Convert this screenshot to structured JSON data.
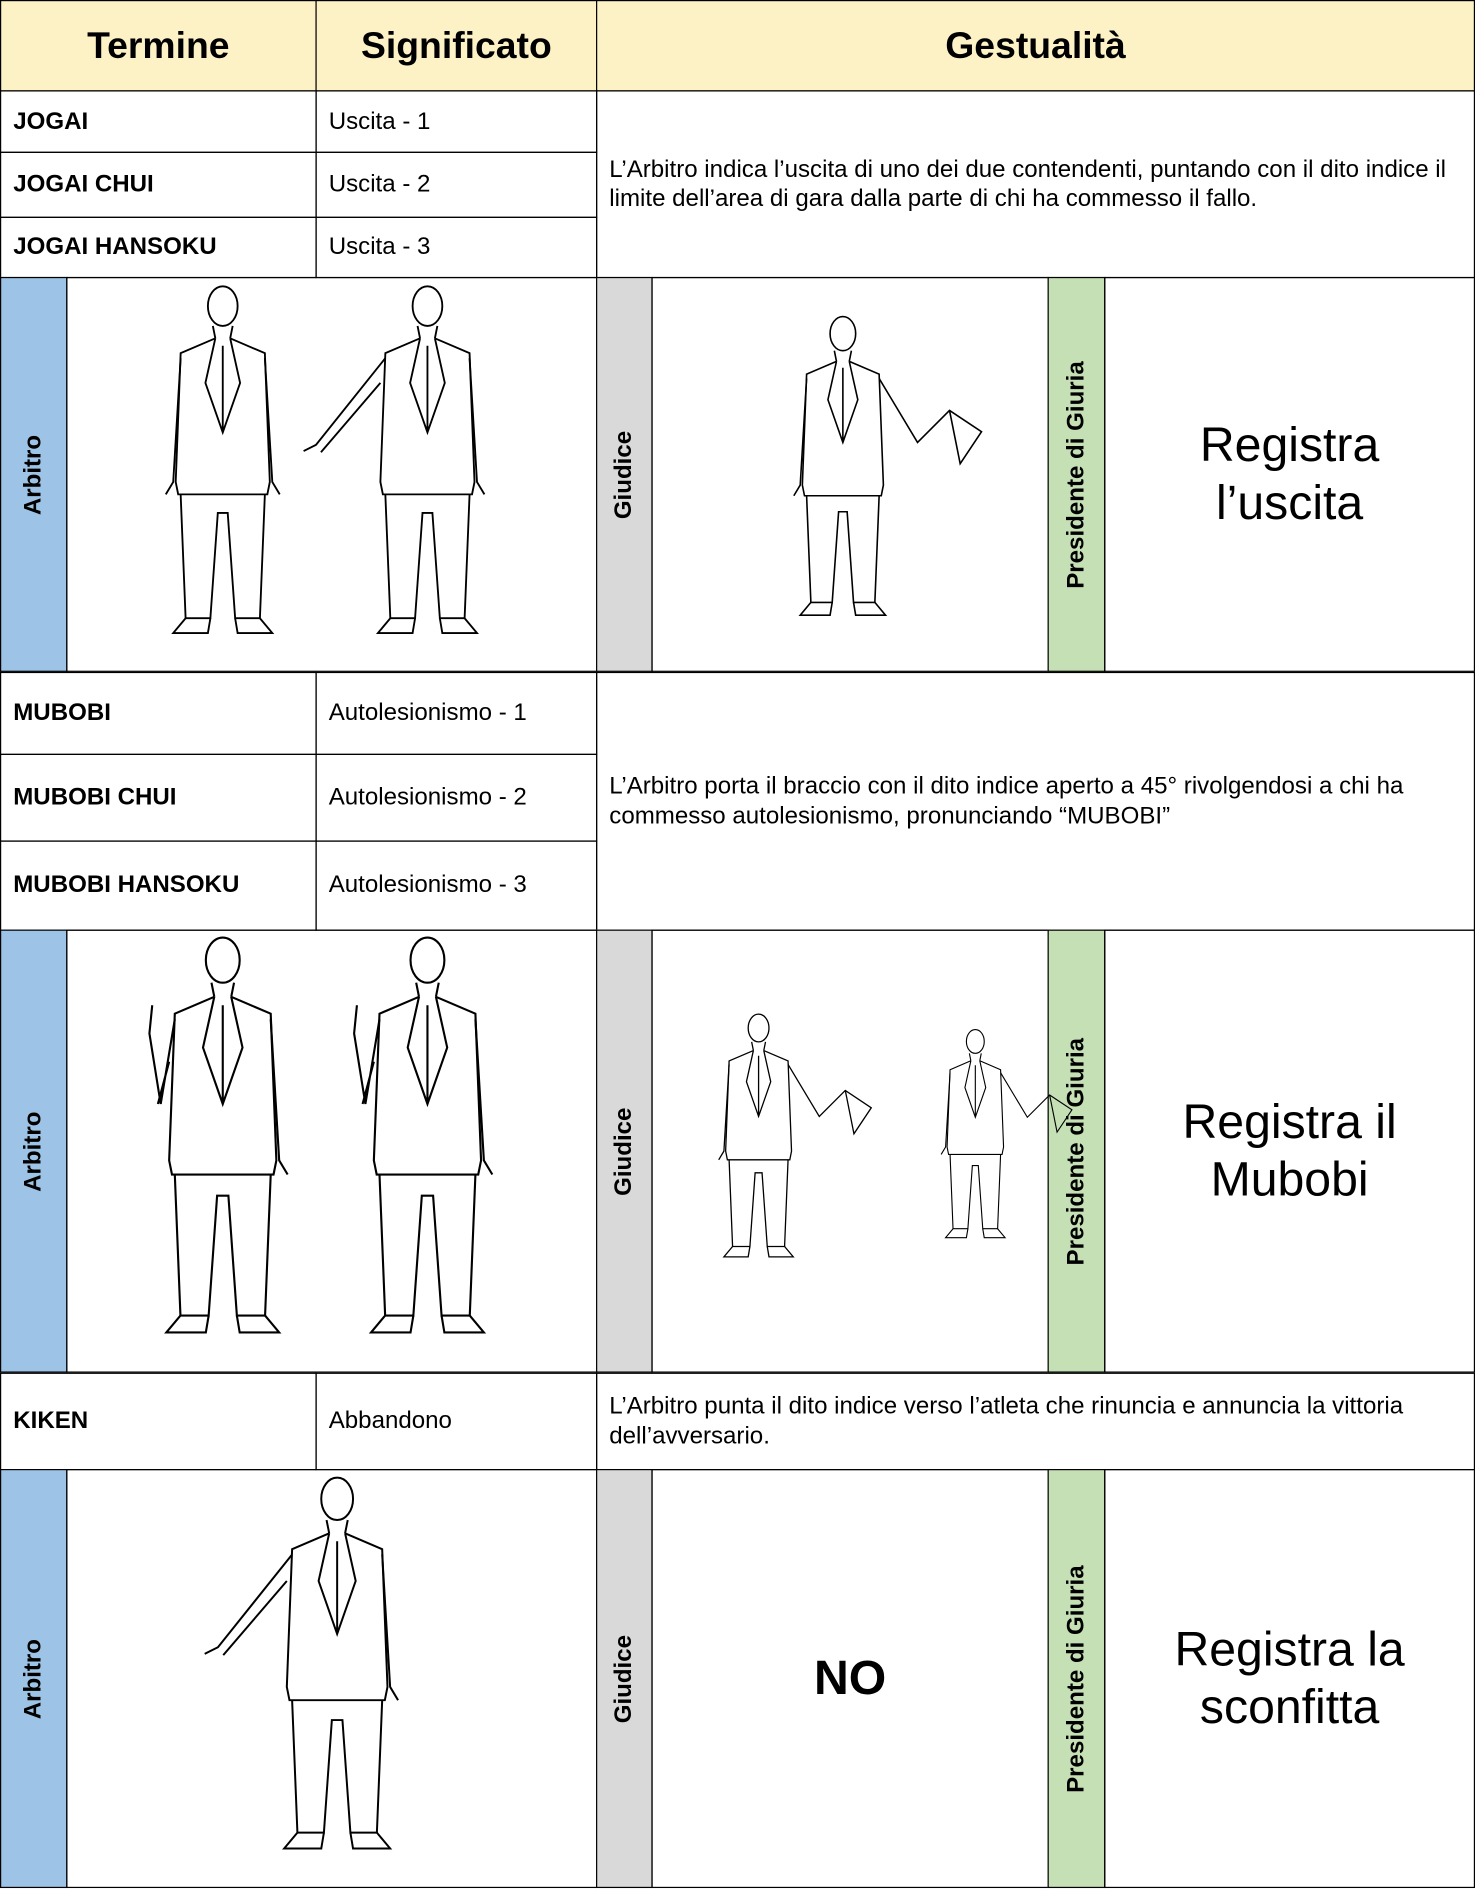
{
  "header": {
    "columns": [
      "Termine",
      "Significato",
      "Gestualità"
    ]
  },
  "sections": [
    {
      "rows": [
        {
          "term": "JOGAI",
          "meaning": "Uscita - 1"
        },
        {
          "term": "JOGAI CHUI",
          "meaning": "Uscita - 2"
        },
        {
          "term": "JOGAI HANSOKU",
          "meaning": "Uscita - 3"
        }
      ],
      "description": "L’Arbitro indica l’uscita di uno dei due contendenti, puntando con il dito indice il limite dell’area di gara dalla parte di chi ha commesso il fallo.",
      "arbitro": "Arbitro",
      "giudice": "Giudice",
      "presidente": "Presidente di Giuria",
      "presidente_text": "Registra l’uscita"
    },
    {
      "rows": [
        {
          "term": "MUBOBI",
          "meaning": "Autolesionismo - 1"
        },
        {
          "term": "MUBOBI CHUI",
          "meaning": "Autolesionismo - 2"
        },
        {
          "term": "MUBOBI HANSOKU",
          "meaning": "Autolesionismo - 3"
        }
      ],
      "description": "L’Arbitro porta il braccio con il dito indice aperto a 45° rivolgendosi a chi ha commesso autolesionismo, pronunciando “MUBOBI”",
      "arbitro": "Arbitro",
      "giudice": "Giudice",
      "presidente": "Presidente di Giuria",
      "presidente_text": "Registra il Mubobi"
    },
    {
      "rows": [
        {
          "term": "KIKEN",
          "meaning": "Abbandono"
        }
      ],
      "description": "L’Arbitro punta il dito indice verso l’atleta che rinuncia e annuncia la vittoria dell’avversario.",
      "arbitro": "Arbitro",
      "giudice": "Giudice",
      "giudice_text": "NO",
      "presidente": "Presidente di Giuria",
      "presidente_text": "Registra la sconfitta"
    }
  ]
}
